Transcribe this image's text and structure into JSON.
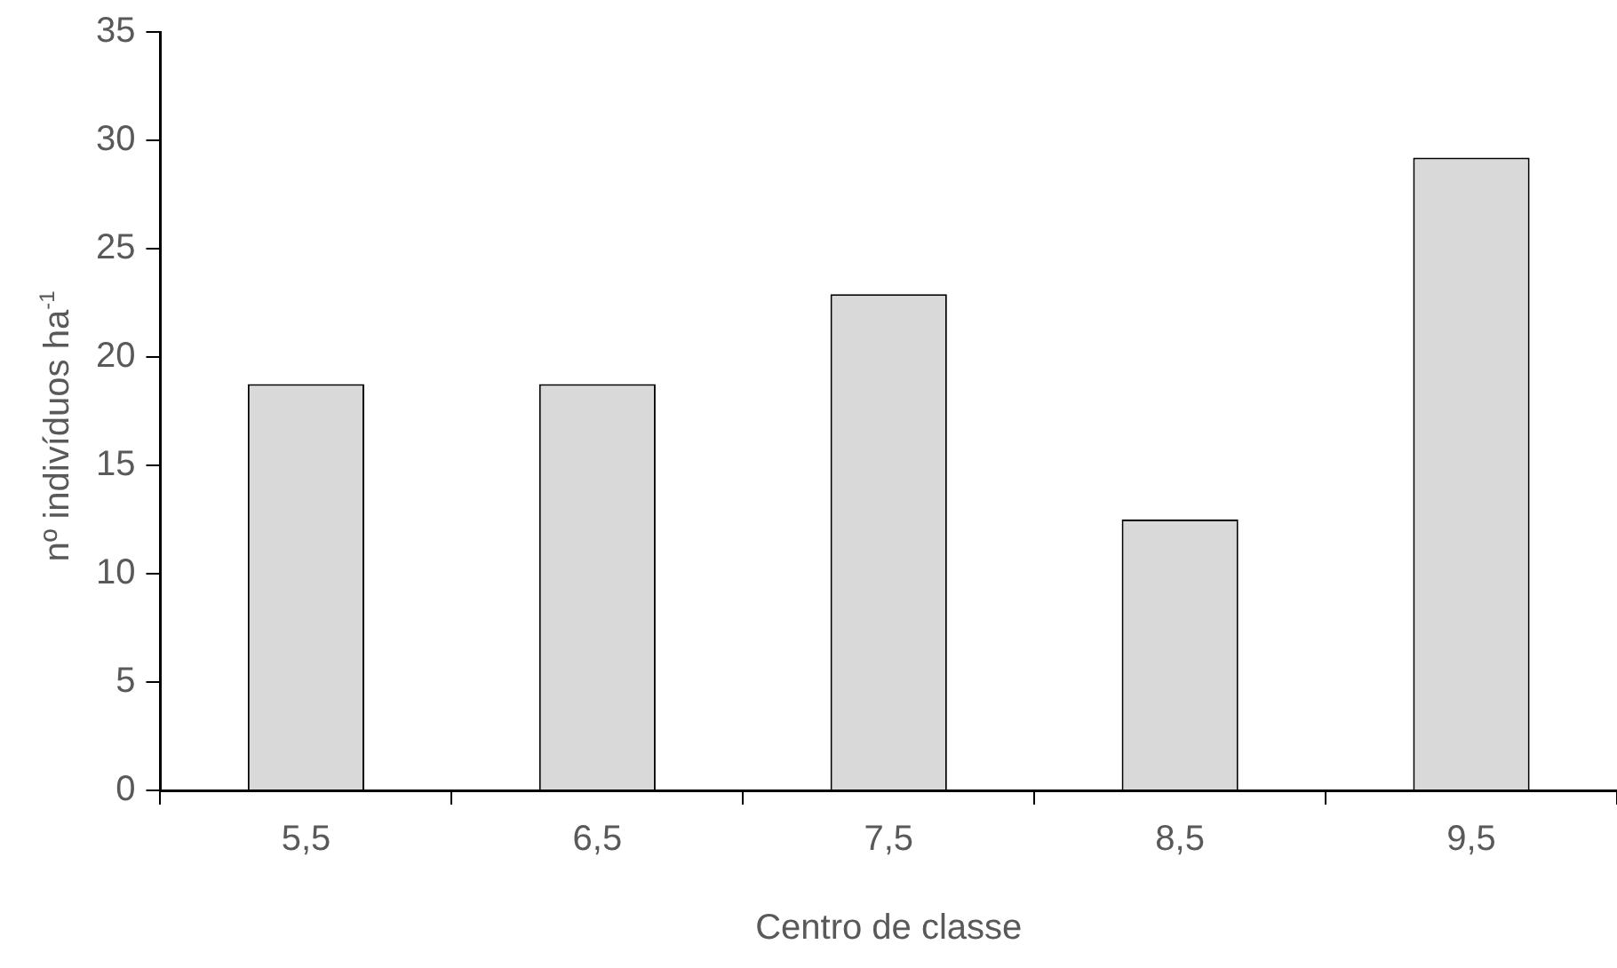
{
  "chart_data": {
    "type": "bar",
    "xlabel": "Centro de classe",
    "ylabel": "nº indivíduos ha$^{-1}$",
    "categories": [
      "5,5",
      "6,5",
      "7,5",
      "8,5",
      "9,5"
    ],
    "values": [
      18.75,
      18.75,
      22.9,
      12.5,
      29.2
    ],
    "color": "#d9d9d9",
    "ylim": [
      0,
      35
    ],
    "yticks": [
      0,
      5,
      10,
      15,
      20,
      25,
      30,
      35
    ],
    "grid": false,
    "legend": false
  }
}
